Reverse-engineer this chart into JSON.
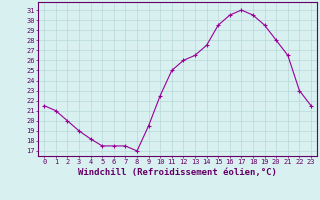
{
  "x": [
    0,
    1,
    2,
    3,
    4,
    5,
    6,
    7,
    8,
    9,
    10,
    11,
    12,
    13,
    14,
    15,
    16,
    17,
    18,
    19,
    20,
    21,
    22,
    23
  ],
  "y": [
    21.5,
    21.0,
    20.0,
    19.0,
    18.2,
    17.5,
    17.5,
    17.5,
    17.0,
    19.5,
    22.5,
    25.0,
    26.0,
    26.5,
    27.5,
    29.5,
    30.5,
    31.0,
    30.5,
    29.5,
    28.0,
    26.5,
    23.0,
    21.5
  ],
  "line_color": "#990099",
  "marker": "+",
  "marker_size": 3,
  "marker_edge_width": 0.8,
  "line_width": 0.8,
  "bg_color": "#d8f0f0",
  "grid_color": "#b8d8d8",
  "axis_color": "#660066",
  "xlabel": "Windchill (Refroidissement éolien,°C)",
  "xlabel_color": "#660066",
  "ylabel_ticks": [
    17,
    18,
    19,
    20,
    21,
    22,
    23,
    24,
    25,
    26,
    27,
    28,
    29,
    30,
    31
  ],
  "ylim": [
    16.5,
    31.8
  ],
  "xlim": [
    -0.5,
    23.5
  ],
  "tick_color": "#660066",
  "tick_fontsize": 5.0,
  "xlabel_fontsize": 6.5,
  "fig_width": 3.2,
  "fig_height": 2.0,
  "dpi": 100
}
